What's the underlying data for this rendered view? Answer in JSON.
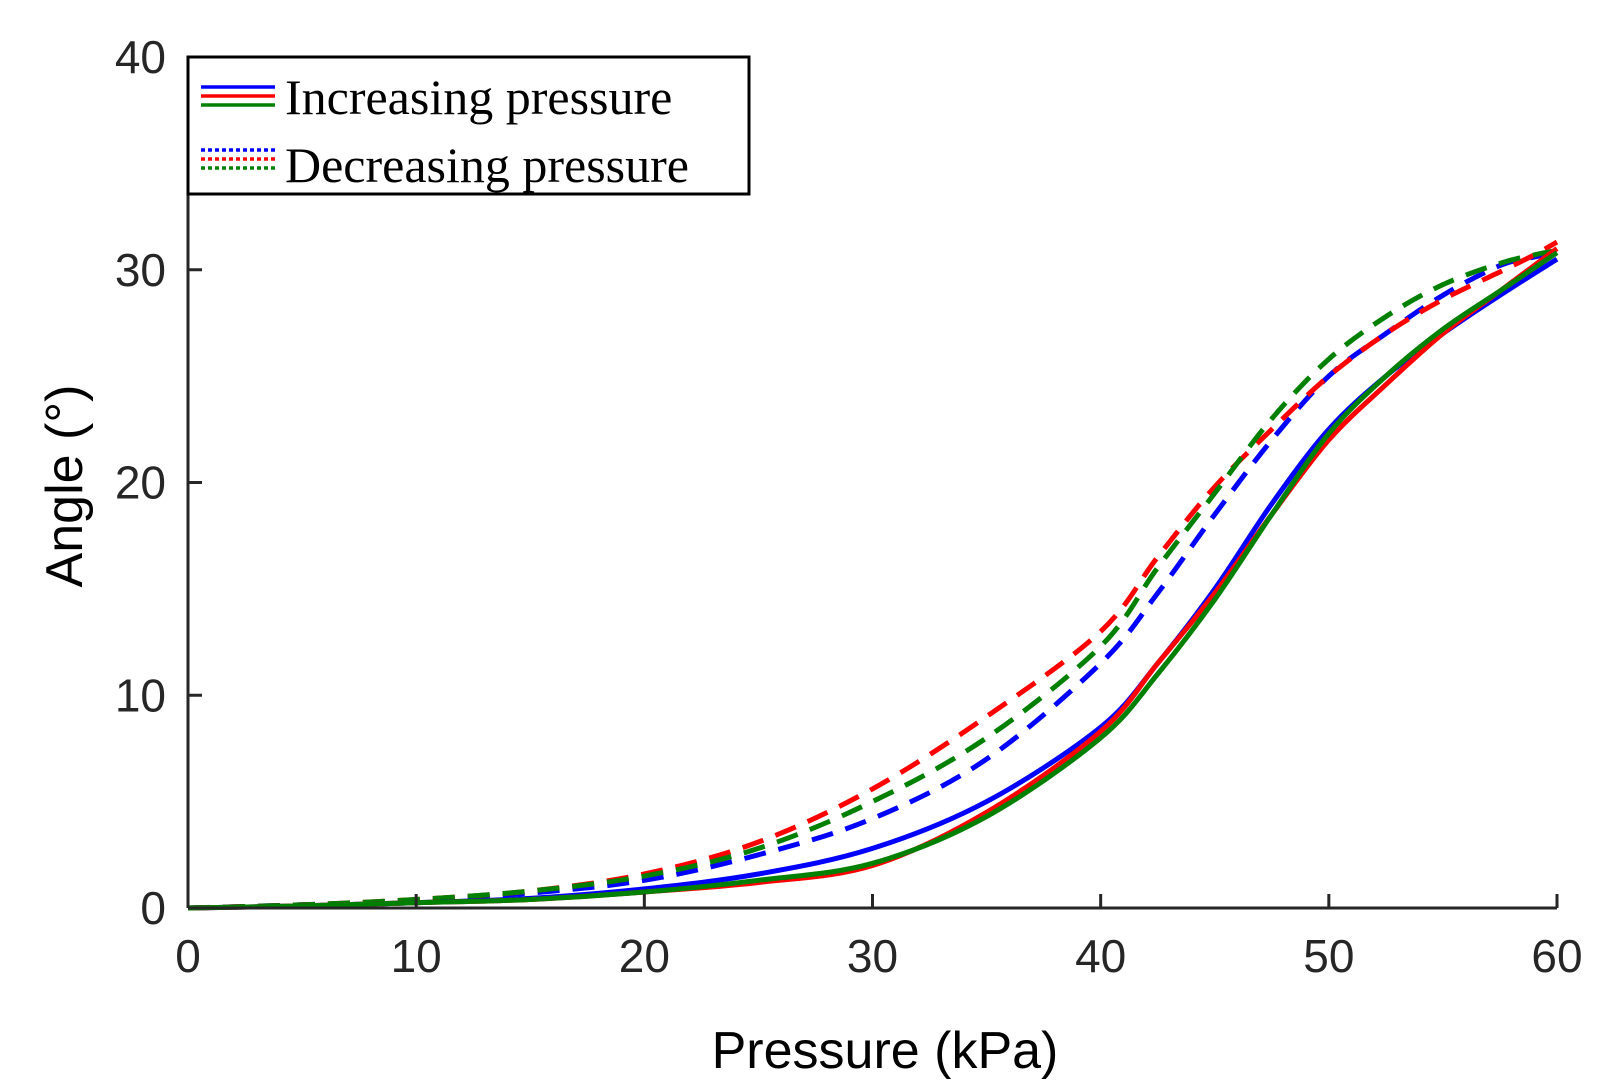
{
  "chart_data": {
    "type": "line",
    "title": "",
    "xlabel": "Pressure (kPa)",
    "ylabel": "Angle (°)",
    "xlim": [
      0,
      60
    ],
    "ylim": [
      0,
      40
    ],
    "xticks": [
      0,
      10,
      20,
      30,
      40,
      50,
      60
    ],
    "yticks": [
      0,
      10,
      20,
      30,
      40
    ],
    "grid": false,
    "legend": {
      "placement": "top-left",
      "entries": [
        {
          "label": "Increasing pressure",
          "style": "solid",
          "colors": [
            "#0000FF",
            "#FF0000",
            "#008000"
          ]
        },
        {
          "label": "Decreasing pressure",
          "style": "dashed",
          "colors": [
            "#0000FF",
            "#FF0000",
            "#008000"
          ]
        }
      ]
    },
    "series": [
      {
        "color": "#0000FF",
        "style": "solid",
        "x": [
          0,
          5,
          10,
          15,
          20,
          25,
          30,
          35,
          40,
          42.5,
          45,
          47.5,
          50,
          52.5,
          55,
          57.5,
          60
        ],
        "y": [
          0,
          0.1,
          0.25,
          0.45,
          0.9,
          1.6,
          2.8,
          5,
          8.5,
          11.5,
          15,
          19,
          22.5,
          25,
          27,
          28.8,
          30.5
        ]
      },
      {
        "color": "#FF0000",
        "style": "solid",
        "x": [
          0,
          5,
          10,
          15,
          20,
          25,
          30,
          35,
          40,
          42.5,
          45,
          47.5,
          50,
          52.5,
          55,
          57.5,
          60
        ],
        "y": [
          0,
          0.1,
          0.25,
          0.4,
          0.75,
          1.2,
          2.0,
          4.5,
          8.3,
          11.5,
          14.8,
          18.5,
          22,
          24.6,
          27,
          29,
          31
        ]
      },
      {
        "color": "#008000",
        "style": "solid",
        "x": [
          0,
          5,
          10,
          15,
          20,
          25,
          30,
          35,
          40,
          42.5,
          45,
          47.5,
          50,
          52.5,
          55,
          57.5,
          60
        ],
        "y": [
          0,
          0.1,
          0.25,
          0.4,
          0.75,
          1.3,
          2.1,
          4.3,
          8.0,
          11.0,
          14.5,
          18.5,
          22.3,
          25,
          27.2,
          29,
          30.8
        ]
      },
      {
        "color": "#0000FF",
        "style": "dashed",
        "x": [
          0,
          5,
          10,
          15,
          20,
          25,
          30,
          35,
          40,
          42.5,
          45,
          47.5,
          50,
          52.5,
          55,
          57.5,
          59,
          60
        ],
        "y": [
          0,
          0.15,
          0.35,
          0.7,
          1.3,
          2.5,
          4.2,
          7,
          11.5,
          14.8,
          18.5,
          22,
          25,
          27,
          28.8,
          30.2,
          30.6,
          30.8
        ]
      },
      {
        "color": "#FF0000",
        "style": "dashed",
        "x": [
          0,
          5,
          10,
          15,
          20,
          25,
          30,
          35,
          40,
          42.5,
          45,
          47.5,
          50,
          52.5,
          55,
          57.5,
          59,
          60
        ],
        "y": [
          0,
          0.15,
          0.4,
          0.8,
          1.6,
          3.1,
          5.6,
          9,
          13,
          16.5,
          19.8,
          22.5,
          25,
          27,
          28.6,
          29.9,
          30.7,
          31.3
        ]
      },
      {
        "color": "#008000",
        "style": "dashed",
        "x": [
          0,
          5,
          10,
          15,
          20,
          25,
          30,
          35,
          40,
          42.5,
          45,
          47.5,
          50,
          52.5,
          55,
          57.5,
          59,
          60
        ],
        "y": [
          0,
          0.15,
          0.4,
          0.8,
          1.5,
          2.8,
          5.0,
          8,
          12.3,
          16,
          19.5,
          23,
          25.8,
          27.8,
          29.3,
          30.3,
          30.7,
          30.9
        ]
      }
    ]
  }
}
